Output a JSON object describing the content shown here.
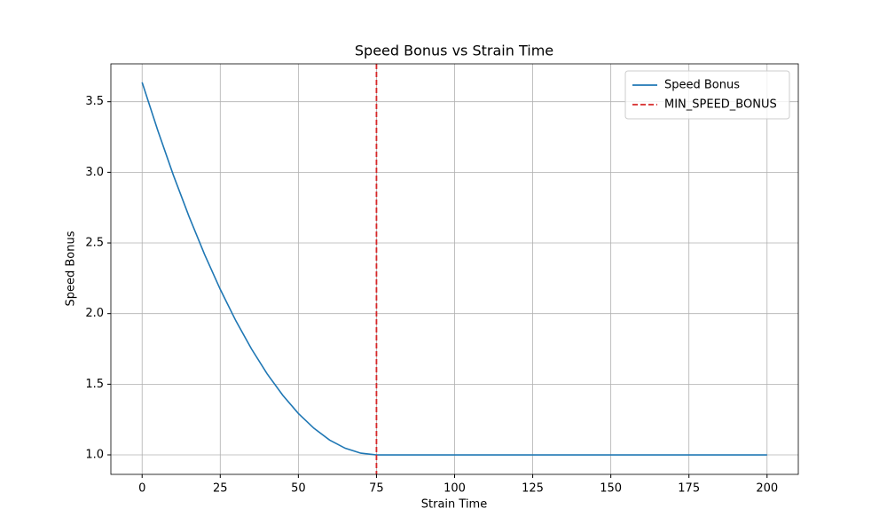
{
  "chart_data": {
    "type": "line",
    "title": "Speed Bonus vs Strain Time",
    "x_label": "Strain Time",
    "y_label": "Speed Bonus",
    "x": [
      0,
      5,
      10,
      15,
      20,
      25,
      30,
      35,
      40,
      45,
      50,
      55,
      60,
      65,
      70,
      75,
      200
    ],
    "series": [
      {
        "name": "Speed Bonus",
        "color": "#1f77b4",
        "values": [
          3.637,
          3.297,
          2.98,
          2.688,
          2.418,
          2.172,
          1.949,
          1.75,
          1.574,
          1.422,
          1.293,
          1.188,
          1.105,
          1.047,
          1.012,
          1,
          1
        ]
      }
    ],
    "vlines": [
      {
        "name": "MIN_SPEED_BONUS",
        "x": 75,
        "color": "#d62728",
        "dashed": true
      }
    ],
    "xlim": [
      -10,
      210
    ],
    "xticks": [
      0,
      25,
      50,
      75,
      100,
      125,
      150,
      175,
      200
    ],
    "ylim": [
      0.862,
      3.768
    ],
    "yticks": [
      {
        "value": 1,
        "label": "1.0"
      },
      {
        "value": 1.5,
        "label": "1.5"
      },
      {
        "value": 2,
        "label": "2.0"
      },
      {
        "value": 2.5,
        "label": "2.5"
      },
      {
        "value": 3,
        "label": "3.0"
      },
      {
        "value": 3.5,
        "label": "3.5"
      }
    ],
    "grid": true,
    "legend": "upper right"
  }
}
